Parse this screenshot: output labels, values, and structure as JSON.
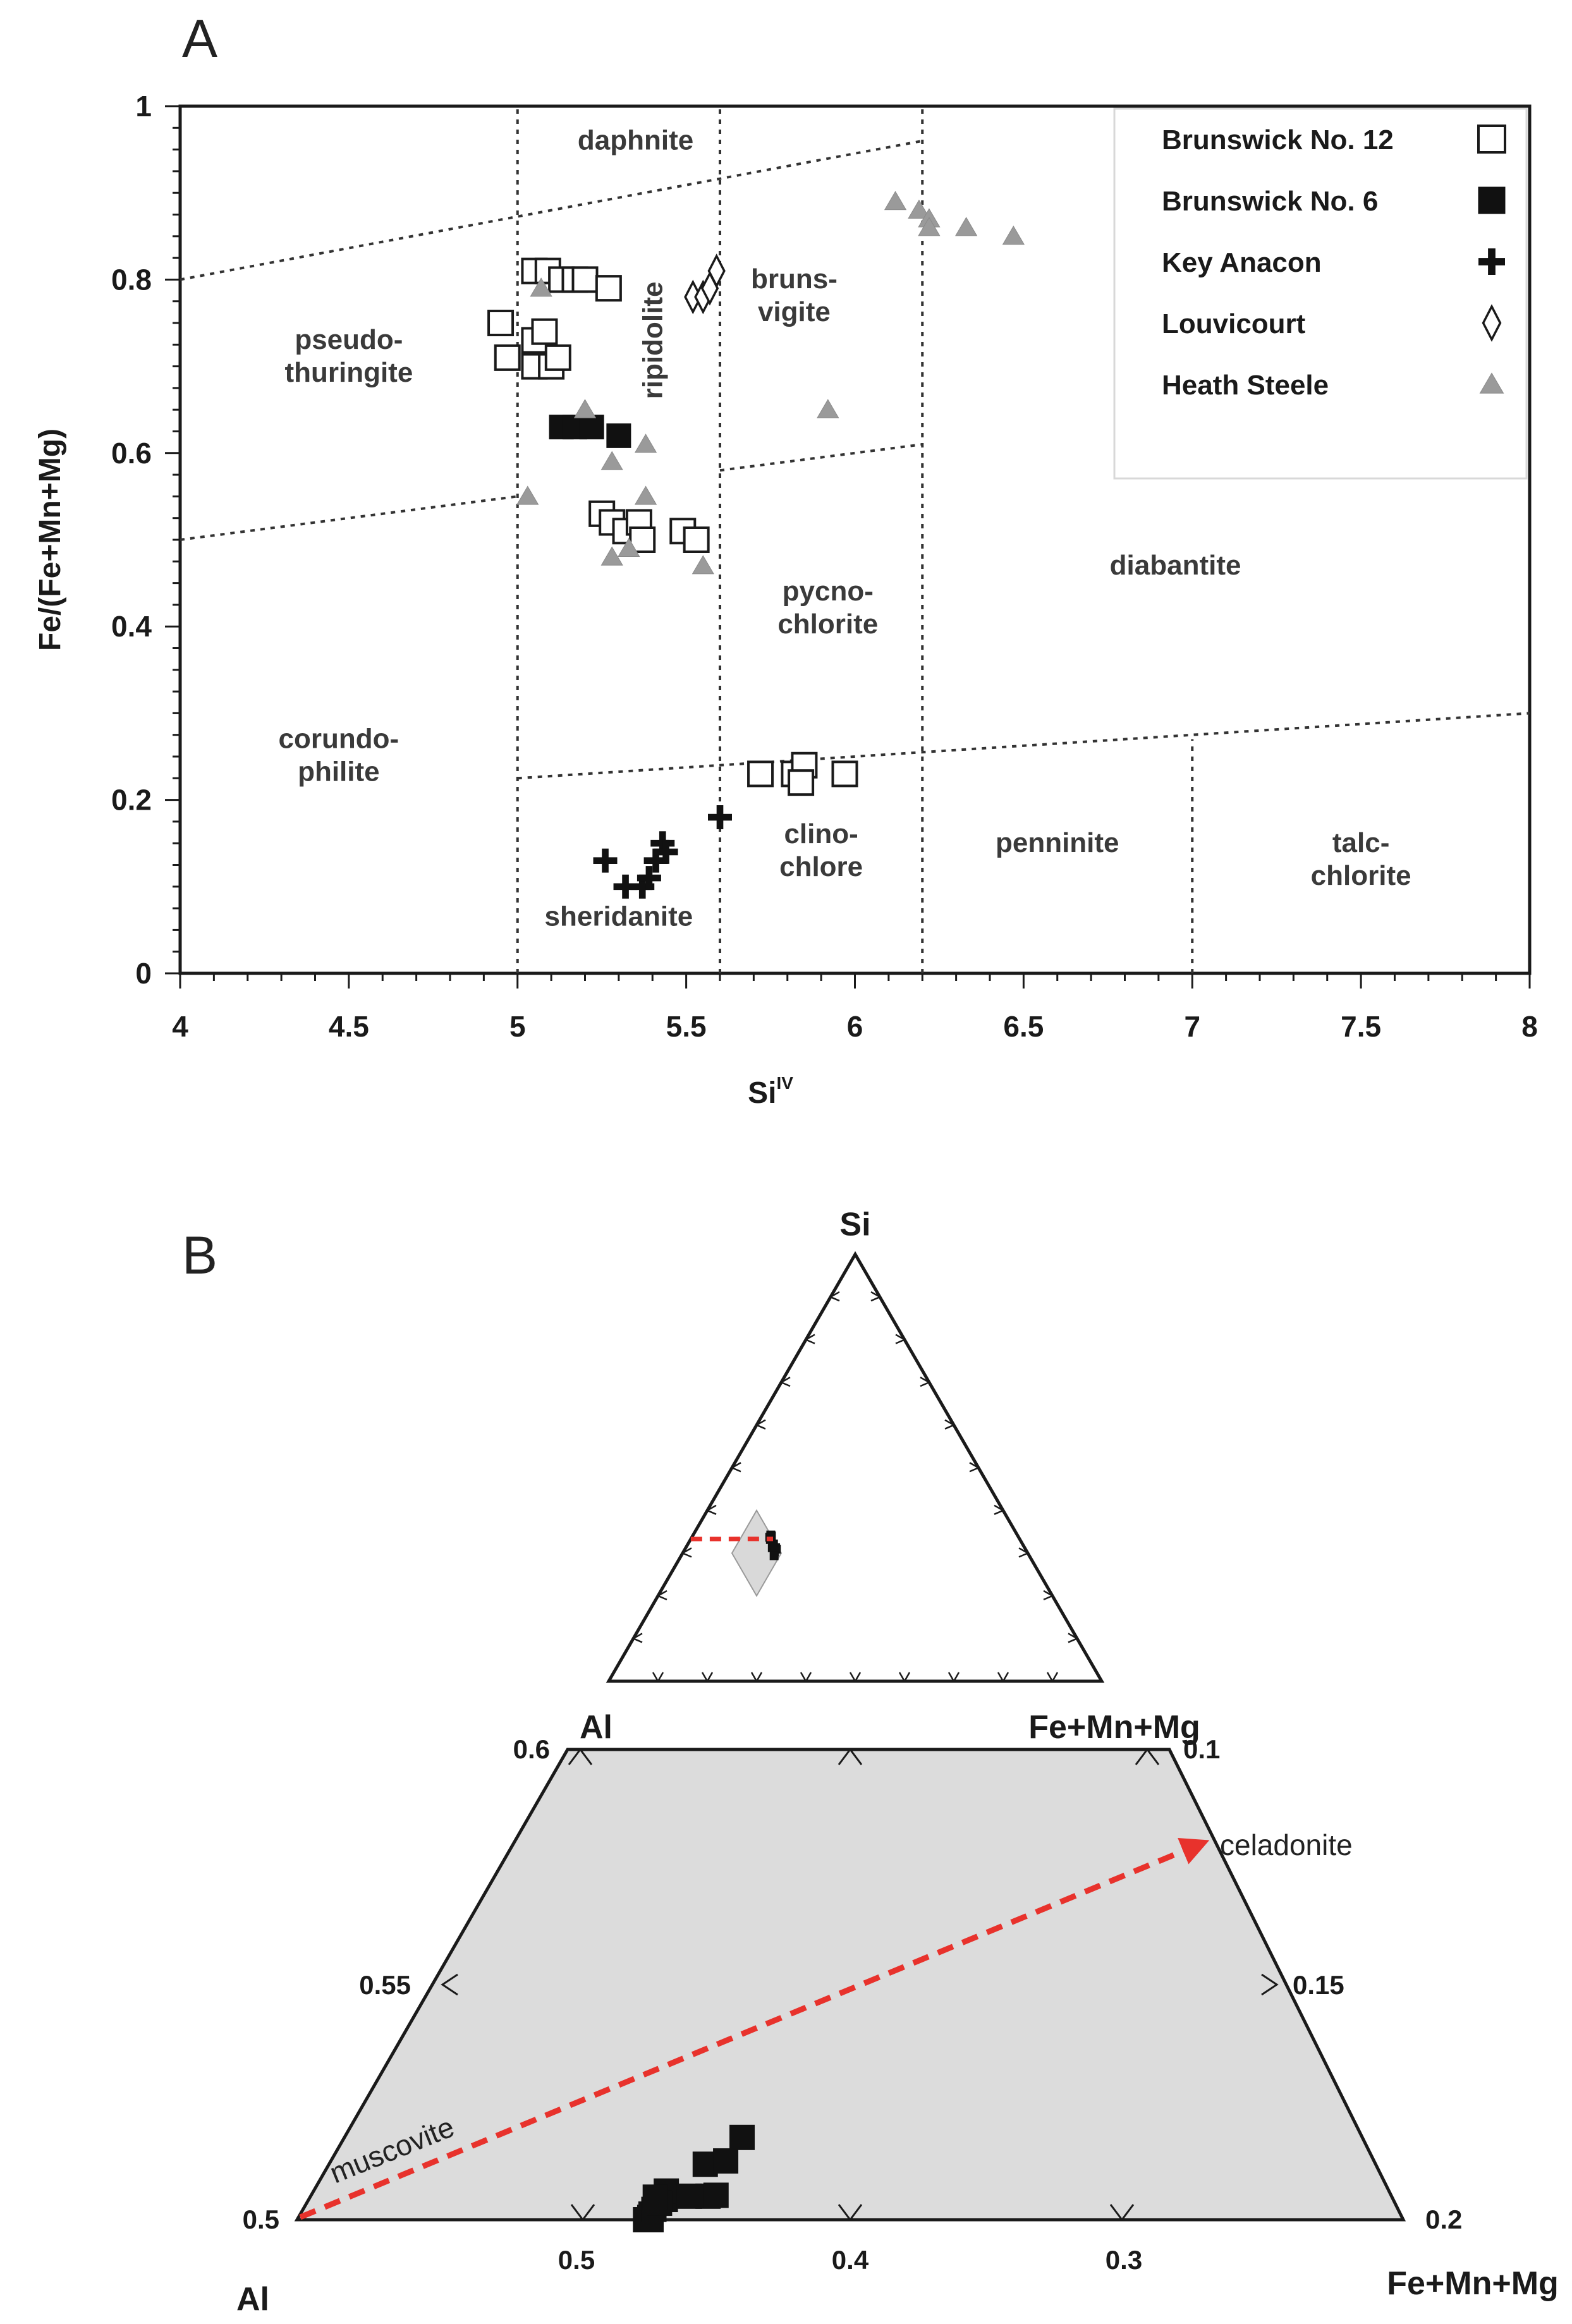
{
  "chart_data": [
    {
      "panel": "A",
      "type": "scatter",
      "title": "",
      "xlabel": "Si",
      "xlabel_superscript": "IV",
      "ylabel": "Fe/(Fe+Mn+Mg)",
      "xlim": [
        4,
        8
      ],
      "ylim": [
        0,
        1
      ],
      "xticks": [
        "4",
        "4.5",
        "5",
        "5.5",
        "6",
        "6.5",
        "7",
        "7.5",
        "8"
      ],
      "yticks": [
        "0",
        "0.2",
        "0.4",
        "0.6",
        "0.8",
        "1"
      ],
      "grid": false,
      "legend_position": "top-right",
      "field_labels": [
        {
          "lines": [
            "daphnite"
          ],
          "x": 5.35,
          "y": 0.95
        },
        {
          "lines": [
            "pseudo-",
            "thuringite"
          ],
          "x": 4.5,
          "y": 0.72
        },
        {
          "lines": [
            "ripidolite"
          ],
          "x": 5.4,
          "y": 0.73,
          "rotated": true
        },
        {
          "lines": [
            "bruns-",
            "vigite"
          ],
          "x": 5.82,
          "y": 0.79
        },
        {
          "lines": [
            "diabantite"
          ],
          "x": 6.95,
          "y": 0.46
        },
        {
          "lines": [
            "pycno-",
            "chlorite"
          ],
          "x": 5.92,
          "y": 0.43
        },
        {
          "lines": [
            "corundo-",
            "philite"
          ],
          "x": 4.47,
          "y": 0.26
        },
        {
          "lines": [
            "clino-",
            "chlore"
          ],
          "x": 5.9,
          "y": 0.15
        },
        {
          "lines": [
            "sheridanite"
          ],
          "x": 5.3,
          "y": 0.055
        },
        {
          "lines": [
            "penninite"
          ],
          "x": 6.6,
          "y": 0.14
        },
        {
          "lines": [
            "talc-",
            "chlorite"
          ],
          "x": 7.5,
          "y": 0.14
        }
      ],
      "series": [
        {
          "name": "Brunswick No. 12",
          "marker": "open-square",
          "points": [
            [
              5.05,
              0.81
            ],
            [
              5.09,
              0.81
            ],
            [
              5.13,
              0.8
            ],
            [
              5.17,
              0.8
            ],
            [
              5.2,
              0.8
            ],
            [
              5.27,
              0.79
            ],
            [
              4.95,
              0.75
            ],
            [
              5.05,
              0.73
            ],
            [
              5.08,
              0.74
            ],
            [
              4.97,
              0.71
            ],
            [
              5.05,
              0.7
            ],
            [
              5.1,
              0.7
            ],
            [
              5.12,
              0.71
            ],
            [
              5.25,
              0.53
            ],
            [
              5.28,
              0.52
            ],
            [
              5.32,
              0.51
            ],
            [
              5.36,
              0.52
            ],
            [
              5.37,
              0.5
            ],
            [
              5.49,
              0.51
            ],
            [
              5.53,
              0.5
            ],
            [
              5.72,
              0.23
            ],
            [
              5.82,
              0.23
            ],
            [
              5.85,
              0.24
            ],
            [
              5.84,
              0.22
            ],
            [
              5.97,
              0.23
            ]
          ]
        },
        {
          "name": "Brunswick No. 6",
          "marker": "filled-square",
          "points": [
            [
              5.13,
              0.63
            ],
            [
              5.17,
              0.63
            ],
            [
              5.22,
              0.63
            ],
            [
              5.3,
              0.62
            ]
          ]
        },
        {
          "name": "Key Anacon",
          "marker": "plus",
          "points": [
            [
              5.26,
              0.13
            ],
            [
              5.32,
              0.1
            ],
            [
              5.37,
              0.1
            ],
            [
              5.39,
              0.11
            ],
            [
              5.41,
              0.13
            ],
            [
              5.43,
              0.15
            ],
            [
              5.44,
              0.14
            ],
            [
              5.6,
              0.18
            ]
          ]
        },
        {
          "name": "Louvicourt",
          "marker": "open-diamond",
          "points": [
            [
              5.52,
              0.78
            ],
            [
              5.55,
              0.78
            ],
            [
              5.57,
              0.79
            ],
            [
              5.59,
              0.81
            ]
          ]
        },
        {
          "name": "Heath Steele",
          "marker": "gray-triangle",
          "points": [
            [
              5.03,
              0.55
            ],
            [
              5.07,
              0.79
            ],
            [
              5.2,
              0.65
            ],
            [
              5.28,
              0.59
            ],
            [
              5.38,
              0.61
            ],
            [
              5.38,
              0.55
            ],
            [
              5.28,
              0.48
            ],
            [
              5.33,
              0.49
            ],
            [
              5.55,
              0.47
            ],
            [
              5.92,
              0.65
            ],
            [
              6.12,
              0.89
            ],
            [
              6.19,
              0.88
            ],
            [
              6.22,
              0.87
            ],
            [
              6.22,
              0.86
            ],
            [
              6.33,
              0.86
            ],
            [
              6.47,
              0.85
            ]
          ]
        }
      ],
      "boundaries": [
        {
          "type": "vertical",
          "x": 5.0,
          "y": [
            0,
            1
          ]
        },
        {
          "type": "vertical",
          "x": 5.6,
          "y": [
            0,
            1
          ]
        },
        {
          "type": "vertical",
          "x": 6.2,
          "y": [
            0,
            1
          ]
        },
        {
          "type": "vertical",
          "x": 7.0,
          "y": [
            0,
            0.27
          ]
        },
        {
          "type": "line",
          "x": [
            4,
            6.2
          ],
          "y": [
            0.8,
            0.96
          ]
        },
        {
          "type": "line",
          "x": [
            4,
            5.0
          ],
          "y": [
            0.5,
            0.55
          ]
        },
        {
          "type": "line",
          "x": [
            5.6,
            6.2
          ],
          "y": [
            0.58,
            0.61
          ]
        },
        {
          "type": "line",
          "x": [
            5.0,
            8.0
          ],
          "y": [
            0.225,
            0.3
          ]
        }
      ]
    },
    {
      "panel": "B",
      "type": "scatter",
      "subtype": "ternary",
      "vertices": {
        "top": "Si",
        "left": "Al",
        "right": "Fe+Mn+Mg"
      },
      "inset": {
        "shape": "trapezoid",
        "al_range": [
          0.5,
          0.6
        ],
        "fmm_range": [
          0.1,
          0.2
        ]
      },
      "zoom_axes": {
        "al_labels": [
          "0.6",
          "0.55",
          "0.5"
        ],
        "fmm_labels": [
          "0.1",
          "0.15",
          "0.2"
        ],
        "bottom_labels": [
          "0.5",
          "0.4",
          "0.3"
        ],
        "left_corner": "Al",
        "right_corner": "Fe+Mn+Mg"
      },
      "trend": {
        "from": "muscovite",
        "to": "celadonite"
      },
      "series": [
        {
          "name": "Brunswick No. 6",
          "marker": "filled-square",
          "points": [
            {
              "al": 0.5,
              "fmm": 0.1575
            },
            {
              "al": 0.5,
              "fmm": 0.16
            },
            {
              "al": 0.5005,
              "fmm": 0.159
            },
            {
              "al": 0.5012,
              "fmm": 0.159
            },
            {
              "al": 0.5022,
              "fmm": 0.1595
            },
            {
              "al": 0.5043,
              "fmm": 0.163
            },
            {
              "al": 0.5061,
              "fmm": 0.162
            },
            {
              "al": 0.5035,
              "fmm": 0.161
            },
            {
              "al": 0.5048,
              "fmm": 0.158
            },
            {
              "al": 0.505,
              "fmm": 0.182
            },
            {
              "al": 0.5052,
              "fmm": 0.1855
            },
            {
              "al": 0.505,
              "fmm": 0.1735
            },
            {
              "al": 0.5118,
              "fmm": 0.1755
            },
            {
              "al": 0.5125,
              "fmm": 0.1845
            },
            {
              "al": 0.5175,
              "fmm": 0.1885
            }
          ]
        }
      ]
    }
  ],
  "panels": {
    "a": {
      "letter": "A"
    },
    "b": {
      "letter": "B"
    }
  }
}
